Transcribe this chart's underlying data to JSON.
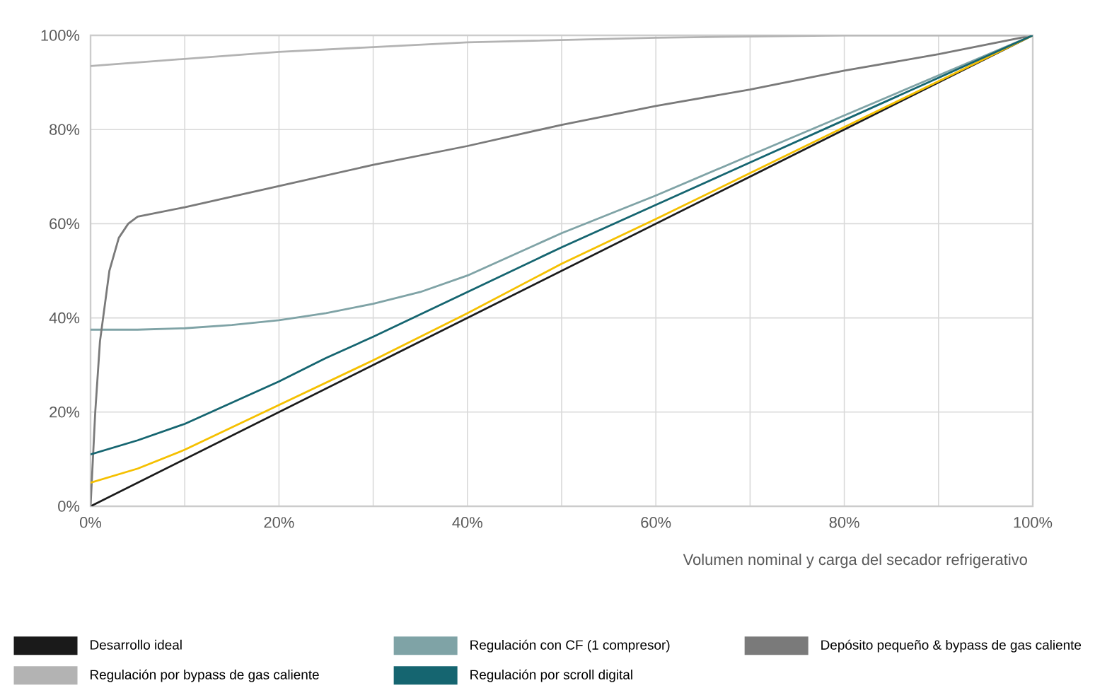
{
  "chart_data": {
    "type": "line",
    "xlabel": "Volumen nominal y carga del secador refrigerativo",
    "xlim": [
      0,
      100
    ],
    "ylim": [
      0,
      100
    ],
    "xticks": [
      {
        "value": 0,
        "label": "0%"
      },
      {
        "value": 10,
        "label": null
      },
      {
        "value": 20,
        "label": "20%"
      },
      {
        "value": 30,
        "label": null
      },
      {
        "value": 40,
        "label": "40%"
      },
      {
        "value": 50,
        "label": null
      },
      {
        "value": 60,
        "label": "60%"
      },
      {
        "value": 70,
        "label": null
      },
      {
        "value": 80,
        "label": "80%"
      },
      {
        "value": 90,
        "label": null
      },
      {
        "value": 100,
        "label": "100%"
      }
    ],
    "yticks": [
      {
        "value": 0,
        "label": "0%"
      },
      {
        "value": 20,
        "label": "20%"
      },
      {
        "value": 40,
        "label": "40%"
      },
      {
        "value": 60,
        "label": "60%"
      },
      {
        "value": 80,
        "label": "80%"
      },
      {
        "value": 100,
        "label": "100%"
      }
    ],
    "grid": true,
    "legend": "bottom",
    "marker": "none",
    "line_style": "solid",
    "series": [
      {
        "name": "Desarrollo ideal",
        "color": "#1a1a1a",
        "x": [
          0,
          100
        ],
        "values": [
          0,
          100
        ]
      },
      {
        "name": "Regulación con CF (1 compresor)",
        "color": "#7fa3a6",
        "x": [
          0,
          5,
          10,
          15,
          20,
          25,
          30,
          35,
          40,
          50,
          60,
          70,
          80,
          90,
          100
        ],
        "values": [
          37.5,
          37.5,
          37.8,
          38.5,
          39.5,
          41,
          43,
          45.5,
          49,
          58,
          66,
          74.5,
          83,
          91.5,
          100
        ]
      },
      {
        "name": "Depósito pequeño & bypass de gas caliente",
        "color": "#7a7a7a",
        "x": [
          0,
          0.5,
          1,
          2,
          3,
          4,
          5,
          10,
          20,
          30,
          40,
          50,
          60,
          70,
          80,
          90,
          100
        ],
        "values": [
          0,
          20,
          35,
          50,
          57,
          60,
          61.5,
          63.5,
          68,
          72.5,
          76.5,
          81,
          85,
          88.5,
          92.5,
          96,
          100
        ]
      },
      {
        "color": "#f5c000",
        "x": [
          0,
          5,
          10,
          20,
          30,
          40,
          50,
          60,
          80,
          100
        ],
        "values": [
          5,
          8,
          12,
          21.5,
          31,
          41,
          51.5,
          61,
          80.5,
          100
        ]
      },
      {
        "name": "Regulación por bypass de gas caliente",
        "color": "#b3b3b3",
        "x": [
          0,
          10,
          20,
          30,
          40,
          50,
          60,
          80,
          100
        ],
        "values": [
          93.5,
          95,
          96.5,
          97.5,
          98.5,
          99,
          99.5,
          100,
          100
        ]
      },
      {
        "name": "Regulación por scroll digital",
        "color": "#156570",
        "x": [
          0,
          5,
          10,
          15,
          20,
          25,
          30,
          40,
          50,
          60,
          70,
          80,
          90,
          100
        ],
        "values": [
          11,
          14,
          17.5,
          22,
          26.5,
          31.5,
          36,
          45.5,
          55,
          64,
          73,
          82,
          91,
          100
        ]
      }
    ]
  }
}
